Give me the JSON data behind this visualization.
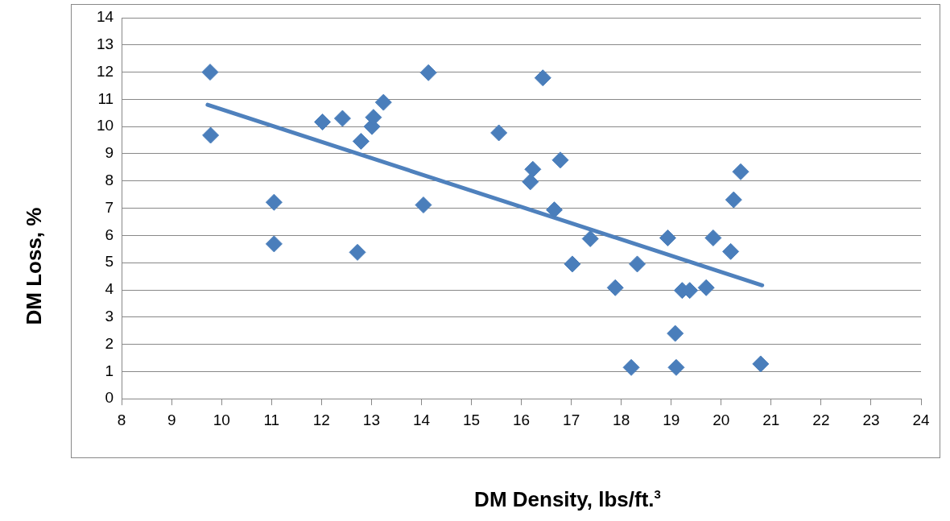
{
  "chart_data": {
    "type": "scatter",
    "xlabel": "DM Density, lbs/ft.$^{3}$",
    "ylabel": "DM Loss, %",
    "xlim": [
      8,
      24
    ],
    "xticks": [
      8,
      9,
      10,
      11,
      12,
      13,
      14,
      15,
      16,
      17,
      18,
      19,
      20,
      21,
      22,
      23,
      24
    ],
    "ylim": [
      0,
      14
    ],
    "yticks": [
      0,
      1,
      2,
      3,
      4,
      5,
      6,
      7,
      8,
      9,
      10,
      11,
      12,
      13,
      14
    ],
    "grid": "y",
    "legend": false,
    "marker": "diamond",
    "series": [
      {
        "color": "#4a7ebb",
        "x": [
          9.77,
          9.78,
          11.05,
          11.05,
          12.02,
          12.42,
          12.72,
          12.79,
          13.24,
          13.01,
          13.04,
          14.04,
          14.14,
          15.55,
          16.43,
          16.23,
          16.18,
          16.78,
          16.66,
          17.02,
          17.38,
          17.88,
          18.32,
          18.2,
          18.93,
          19.08,
          19.1,
          19.22,
          19.37,
          19.7,
          19.84,
          20.25,
          20.19,
          20.39,
          20.79
        ],
        "values": [
          12.0,
          9.68,
          7.22,
          5.69,
          10.17,
          10.3,
          5.38,
          9.46,
          10.89,
          10.0,
          10.34,
          7.12,
          11.98,
          9.77,
          11.79,
          8.43,
          7.97,
          8.77,
          6.94,
          4.95,
          5.88,
          4.08,
          4.95,
          1.15,
          5.91,
          2.4,
          1.15,
          3.98,
          3.98,
          4.08,
          5.91,
          7.31,
          5.41,
          8.34,
          1.28
        ]
      },
      {
        "type": "line",
        "marker": "none",
        "color": "#4f81bd",
        "x": [
          9.72,
          20.82
        ],
        "values": [
          10.8,
          4.17
        ]
      }
    ]
  }
}
